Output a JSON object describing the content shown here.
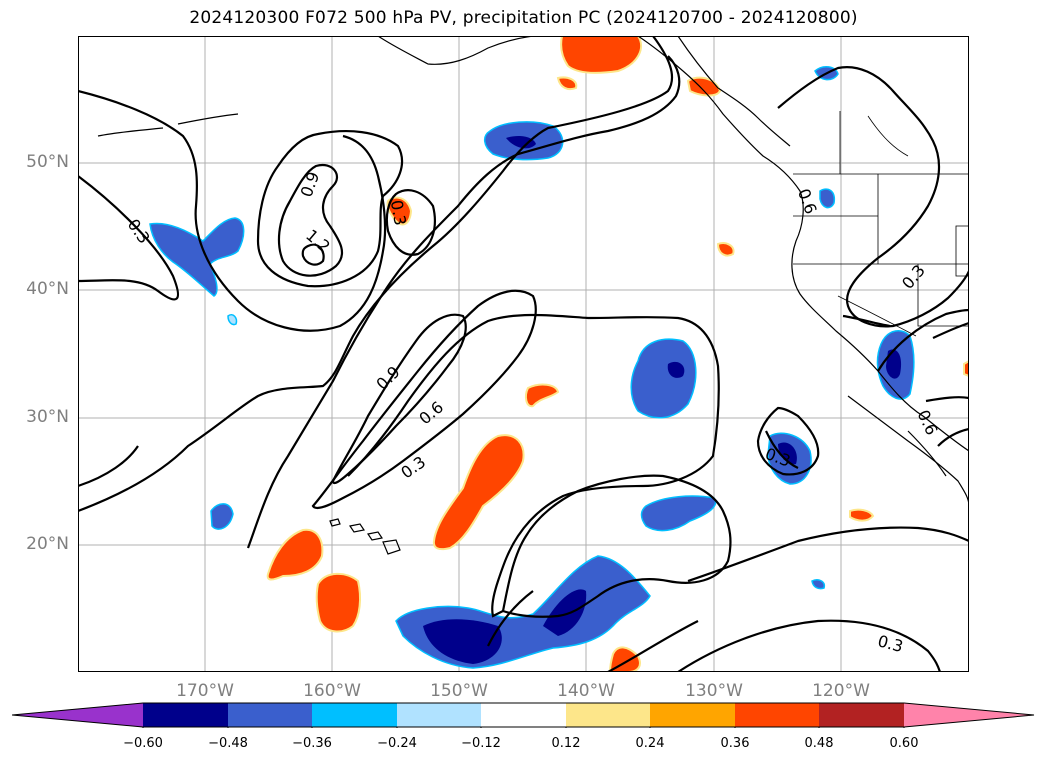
{
  "title": "2024120300 F072 500 hPa PV, precipitation PC (2024120700 - 2024120800)",
  "map": {
    "lat_labels": [
      "50°N",
      "40°N",
      "30°N",
      "20°N"
    ],
    "lon_labels": [
      "170°W",
      "160°W",
      "150°W",
      "140°W",
      "130°W",
      "120°W"
    ],
    "contour_labels": [
      "0.3",
      "0.9",
      "1.2",
      "0.3",
      "0.9",
      "0.6",
      "0.3",
      "0.6",
      "0.3",
      "0.3",
      "0.3",
      "0.6"
    ],
    "gridline_color": "#b0b0b0",
    "contour_color": "#000000"
  },
  "colorbar": {
    "tick_labels": [
      "−0.60",
      "−0.48",
      "−0.36",
      "−0.24",
      "−0.12",
      "0.12",
      "0.24",
      "0.36",
      "0.48",
      "0.60"
    ],
    "colors": [
      "#9932cc",
      "#00008b",
      "#3a5fcd",
      "#00bfff",
      "#b0e2ff",
      "#ffffff",
      "#fde68a",
      "#ffa500",
      "#ff4500",
      "#b22222",
      "#ff83aa"
    ]
  }
}
